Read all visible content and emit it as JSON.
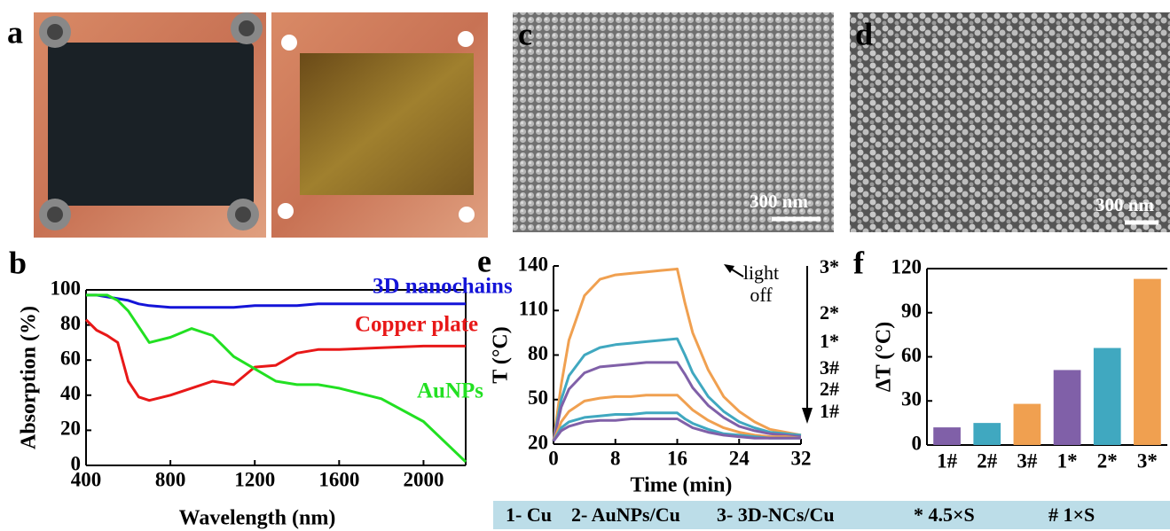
{
  "panels": [
    {
      "label": "a"
    },
    {
      "label": "b"
    },
    {
      "label": "c",
      "scale_bar": "300 nm"
    },
    {
      "label": "d",
      "scale_bar": "300 nm"
    },
    {
      "label": "e"
    },
    {
      "label": "f"
    }
  ],
  "chart_data": [
    {
      "type": "line",
      "x_label": "Wavelength (nm)",
      "y_label": "Absorption (%)",
      "x": [
        400,
        450,
        500,
        550,
        600,
        650,
        700,
        800,
        900,
        1000,
        1100,
        1200,
        1300,
        1400,
        1500,
        1600,
        1800,
        2000,
        2200
      ],
      "series": [
        {
          "name": "3D nanochains",
          "color": "#1414d8",
          "values": [
            97,
            97,
            96,
            95,
            94,
            92,
            91,
            90,
            90,
            90,
            90,
            91,
            91,
            91,
            92,
            92,
            92,
            92,
            92
          ]
        },
        {
          "name": "Copper plate",
          "color": "#e81818",
          "values": [
            83,
            77,
            74,
            70,
            48,
            39,
            37,
            40,
            44,
            48,
            46,
            56,
            57,
            64,
            66,
            66,
            67,
            68,
            68
          ]
        },
        {
          "name": "AuNPs",
          "color": "#22e022",
          "values": [
            97,
            97,
            97,
            94,
            88,
            79,
            70,
            73,
            78,
            74,
            62,
            55,
            48,
            46,
            46,
            44,
            38,
            25,
            2
          ]
        }
      ],
      "xlim": [
        400,
        2200
      ],
      "xticks": [
        400,
        800,
        1200,
        1600,
        2000
      ],
      "ylim": [
        0,
        100
      ],
      "yticks": [
        0,
        20,
        40,
        60,
        80,
        100
      ]
    },
    {
      "type": "line",
      "x_label": "Time (min)",
      "y_label": "T (°C)",
      "annotation": [
        "light",
        "off"
      ],
      "x": [
        0,
        1,
        2,
        4,
        6,
        8,
        10,
        12,
        14,
        16,
        17,
        18,
        20,
        22,
        24,
        26,
        28,
        30,
        32
      ],
      "series": [
        {
          "name": "3*",
          "color": "#f0a050",
          "values": [
            22,
            60,
            90,
            120,
            131,
            134,
            135,
            136,
            137,
            138,
            115,
            95,
            70,
            52,
            42,
            35,
            30,
            28,
            26
          ]
        },
        {
          "name": "2*",
          "color": "#40a8c0",
          "values": [
            22,
            50,
            66,
            80,
            85,
            87,
            88,
            89,
            90,
            91,
            80,
            68,
            52,
            42,
            35,
            31,
            28,
            27,
            26
          ]
        },
        {
          "name": "1*",
          "color": "#8060a8",
          "values": [
            22,
            45,
            57,
            68,
            72,
            73,
            74,
            75,
            75,
            75,
            67,
            58,
            46,
            38,
            32,
            29,
            27,
            26,
            25
          ]
        },
        {
          "name": "3#",
          "color": "#f0a050",
          "values": [
            22,
            35,
            42,
            49,
            51,
            52,
            52,
            53,
            53,
            53,
            48,
            43,
            36,
            31,
            28,
            26,
            25,
            25,
            24
          ]
        },
        {
          "name": "2#",
          "color": "#40a8c0",
          "values": [
            22,
            31,
            35,
            38,
            39,
            40,
            40,
            41,
            41,
            41,
            37,
            34,
            30,
            27,
            26,
            25,
            24,
            24,
            24
          ]
        },
        {
          "name": "1#",
          "color": "#8060a8",
          "values": [
            22,
            29,
            32,
            35,
            36,
            36,
            37,
            37,
            37,
            37,
            34,
            31,
            28,
            26,
            25,
            24,
            24,
            24,
            24
          ]
        }
      ],
      "xlim": [
        0,
        32
      ],
      "xticks": [
        0,
        8,
        16,
        24,
        32
      ],
      "ylim": [
        20,
        140
      ],
      "yticks": [
        20,
        50,
        80,
        110,
        140
      ]
    },
    {
      "type": "bar",
      "y_label": "ΔT (°C)",
      "categories": [
        "1#",
        "2#",
        "3#",
        "1*",
        "2*",
        "3*"
      ],
      "values": [
        12,
        15,
        28,
        51,
        66,
        113
      ],
      "colors": [
        "#8060a8",
        "#40a8c0",
        "#f0a050",
        "#8060a8",
        "#40a8c0",
        "#f0a050"
      ],
      "ylim": [
        0,
        120
      ],
      "yticks": [
        0,
        30,
        60,
        90,
        120
      ]
    }
  ],
  "legend_bar": [
    "1- Cu",
    "2- AuNPs/Cu",
    "3- 3D-NCs/Cu",
    "* 4.5×S",
    "# 1×S"
  ]
}
